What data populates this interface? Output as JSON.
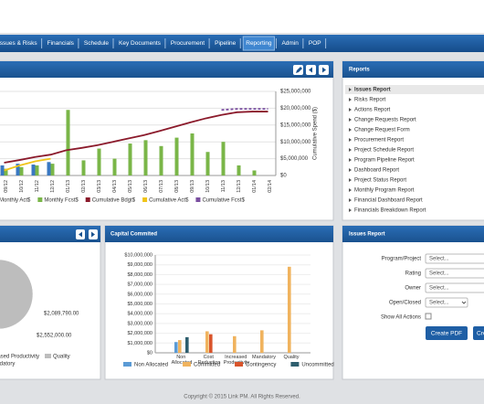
{
  "nav": {
    "items": [
      "Issues & Risks",
      "Financials",
      "Schedule",
      "Key Documents",
      "Procurement",
      "Pipeline",
      "Reporting",
      "Admin",
      "POP"
    ],
    "active": 6
  },
  "spend_chart": {
    "type": "bar-line",
    "categories": [
      "09/12",
      "10/12",
      "11/12",
      "12/12",
      "01/13",
      "02/13",
      "03/13",
      "04/13",
      "05/13",
      "06/13",
      "07/13",
      "08/13",
      "09/13",
      "10/13",
      "11/13",
      "12/13",
      "01/14",
      "02/14"
    ],
    "ylim": [
      0,
      100
    ],
    "y2lim": [
      0,
      25000000
    ],
    "y2ticks": [
      {
        "value": 0,
        "label": "$0"
      },
      {
        "value": 5000000,
        "label": "$5,000,000"
      },
      {
        "value": 10000000,
        "label": "$10,000,000"
      },
      {
        "value": 15000000,
        "label": "$15,000,000"
      },
      {
        "value": 20000000,
        "label": "$20,000,000"
      },
      {
        "value": 25000000,
        "label": "$25,000,000"
      }
    ],
    "y2_label": "Cumulative Spend ($)",
    "grid": true,
    "series": [
      {
        "name": "Monthly Act$",
        "color": "#3a78c2",
        "kind": "bar",
        "values": [
          12,
          14,
          13,
          16,
          null,
          null,
          null,
          null,
          null,
          null,
          null,
          null,
          null,
          null,
          null,
          null,
          null,
          null
        ]
      },
      {
        "name": "Monthly Fcst$",
        "color": "#7ab648",
        "kind": "bar",
        "values": [
          8,
          10,
          12,
          14,
          78,
          18,
          32,
          20,
          38,
          42,
          35,
          45,
          50,
          28,
          40,
          12,
          6,
          null
        ]
      },
      {
        "name": "Cumulative Bdgt$",
        "color": "#8b1a2b",
        "kind": "line",
        "axis": "y2",
        "values": [
          3800000,
          4600000,
          5500000,
          6200000,
          7500000,
          8200000,
          9000000,
          10000000,
          11000000,
          12000000,
          13200000,
          14500000,
          15800000,
          17000000,
          18000000,
          18800000,
          19000000,
          19000000
        ]
      },
      {
        "name": "Cumulative Act$",
        "color": "#f0c419",
        "kind": "line",
        "axis": "y2",
        "values": [
          1500000,
          3000000,
          4200000,
          5000000,
          null,
          null,
          null,
          null,
          null,
          null,
          null,
          null,
          null,
          null,
          null,
          null,
          null,
          null
        ]
      },
      {
        "name": "Cumulative Fcst$",
        "color": "#7b4fa0",
        "kind": "dashed",
        "axis": "y2",
        "values": [
          null,
          null,
          null,
          null,
          null,
          null,
          null,
          null,
          null,
          null,
          null,
          null,
          null,
          null,
          19500000,
          19800000,
          19800000,
          19800000
        ]
      }
    ]
  },
  "reports": {
    "title": "Reports",
    "items": [
      "Issues Report",
      "Risks Report",
      "Actions Report",
      "Change Requests Report",
      "Change Request Form",
      "Procurement Report",
      "Project Schedule Report",
      "Program Pipeline Report",
      "Dashboard Report",
      "Project Status Report",
      "Monthly Program Report",
      "Financial Dashboard Report",
      "Financials Breakdown Report"
    ],
    "selected": 0
  },
  "pie_panel": {
    "type": "pie",
    "series": [
      {
        "name": "Quality",
        "color": "#bdbdbd",
        "value": 4500000
      },
      {
        "name": "Mandatory",
        "color": "#2f5f9a",
        "value": 2089790,
        "value_label": "$2,089,790.00"
      },
      {
        "name": "Increased Productivity",
        "color": "#f2c27a",
        "value": 2552000,
        "value_label": "$2,552,000.00"
      }
    ]
  },
  "capital_chart": {
    "type": "bar",
    "title": "Capital Commited",
    "categories": [
      "Non Allocated",
      "Cost Reduction",
      "Increased Productivity",
      "Mandatory",
      "Quality"
    ],
    "ylim": [
      0,
      10000000
    ],
    "yticks": [
      {
        "value": 0,
        "label": "$0"
      },
      {
        "value": 1000000,
        "label": "$1,000,000"
      },
      {
        "value": 2000000,
        "label": "$2,000,000"
      },
      {
        "value": 3000000,
        "label": "$3,000,000"
      },
      {
        "value": 4000000,
        "label": "$4,000,000"
      },
      {
        "value": 5000000,
        "label": "$5,000,000"
      },
      {
        "value": 6000000,
        "label": "$6,000,000"
      },
      {
        "value": 7000000,
        "label": "$7,000,000"
      },
      {
        "value": 8000000,
        "label": "$8,000,000"
      },
      {
        "value": 9000000,
        "label": "$9,000,000"
      },
      {
        "value": 10000000,
        "label": "$10,000,000"
      }
    ],
    "series": [
      {
        "name": "Non Allocated",
        "color": "#5b9bd5",
        "values": [
          1100000,
          null,
          null,
          null,
          null
        ]
      },
      {
        "name": "Committed",
        "color": "#f0b35e",
        "values": [
          1300000,
          2200000,
          1700000,
          2300000,
          8800000
        ]
      },
      {
        "name": "Contingency",
        "color": "#d9542b",
        "values": [
          null,
          1900000,
          null,
          null,
          null
        ]
      },
      {
        "name": "Uncommitted",
        "color": "#2e5e6e",
        "values": [
          1600000,
          null,
          null,
          null,
          null
        ]
      }
    ]
  },
  "issues_form": {
    "title": "Issues Report",
    "fields": [
      {
        "label": "Program/Project",
        "placeholder": "Select..."
      },
      {
        "label": "Rating",
        "placeholder": "Select..."
      },
      {
        "label": "Owner",
        "placeholder": "Select..."
      },
      {
        "label": "Open/Closed",
        "placeholder": "Select..."
      }
    ],
    "checkbox_label": "Show All Actions",
    "buttons": [
      "Create PDF",
      "Cre"
    ]
  },
  "footer": "Copyright © 2015 Link PM. All Rights Reserved."
}
